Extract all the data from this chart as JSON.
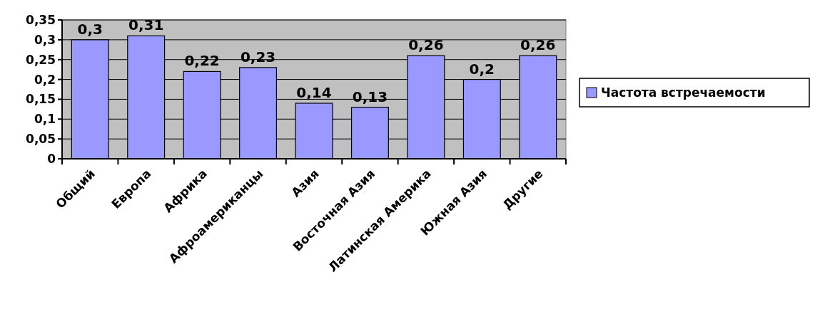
{
  "chart_data": {
    "type": "bar",
    "categories": [
      "Общий",
      "Европа",
      "Африка",
      "Афроамериканцы",
      "Азия",
      "Восточная Азия",
      "Латинская Америка",
      "Южная Азия",
      "Другие"
    ],
    "series": [
      {
        "name": "Частота встречаемости",
        "color": "#9999ff",
        "values": [
          0.3,
          0.31,
          0.22,
          0.23,
          0.14,
          0.13,
          0.26,
          0.2,
          0.26
        ],
        "value_labels": [
          "0,3",
          "0,31",
          "0,22",
          "0,23",
          "0,14",
          "0,13",
          "0,26",
          "0,2",
          "0,26"
        ]
      }
    ],
    "ylim": [
      0,
      0.35
    ],
    "yticks": [
      {
        "value": 0,
        "label": "0"
      },
      {
        "value": 0.05,
        "label": "0,05"
      },
      {
        "value": 0.1,
        "label": "0,1"
      },
      {
        "value": 0.15,
        "label": "0,15"
      },
      {
        "value": 0.2,
        "label": "0,2"
      },
      {
        "value": 0.25,
        "label": "0,25"
      },
      {
        "value": 0.3,
        "label": "0,3"
      },
      {
        "value": 0.35,
        "label": "0,35"
      }
    ],
    "grid": "y",
    "legend": "right"
  }
}
